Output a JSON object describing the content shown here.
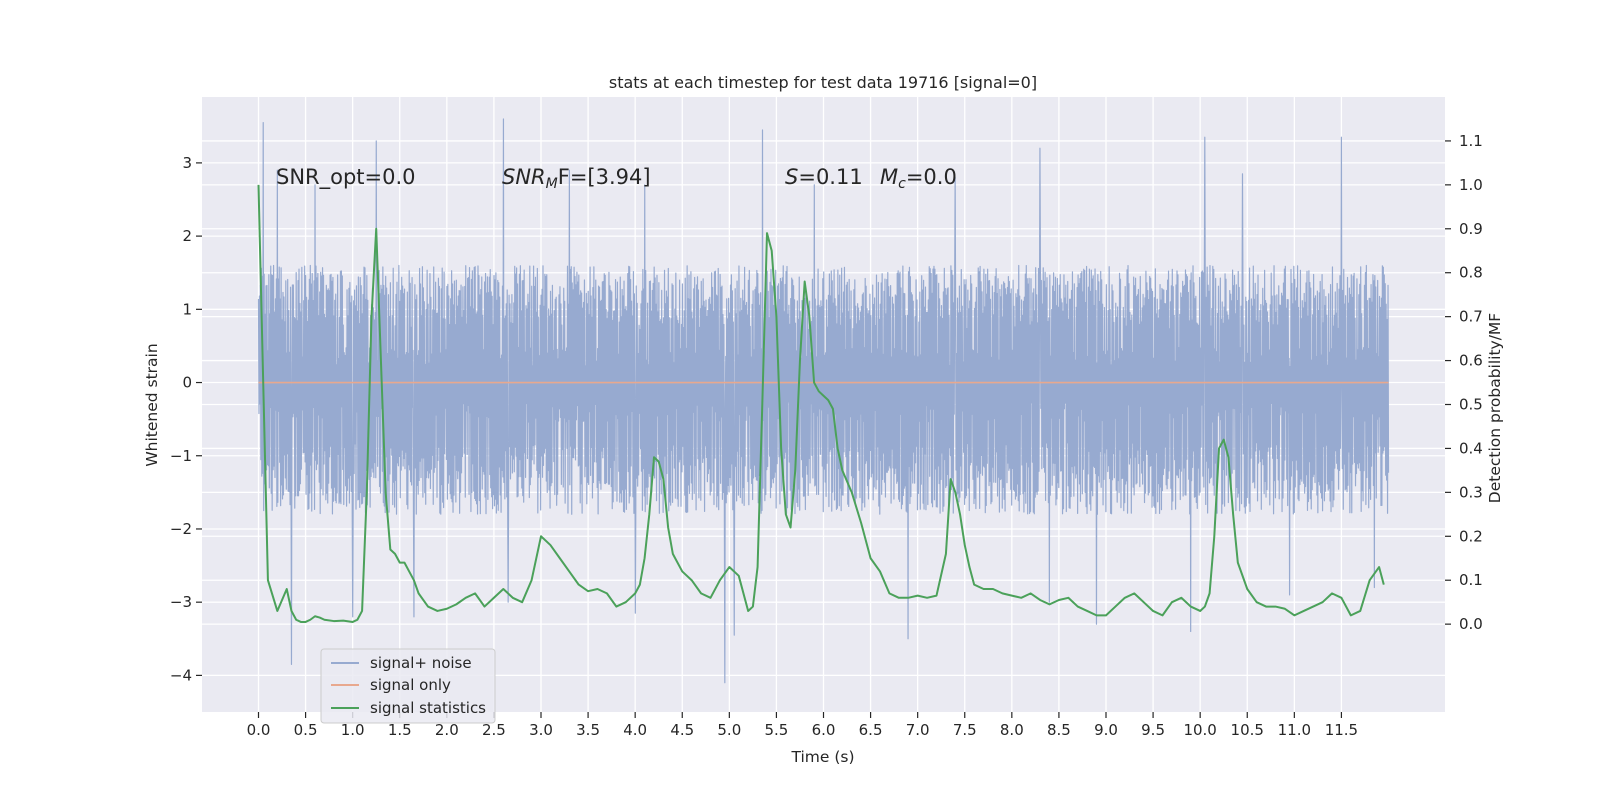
{
  "chart_data": {
    "type": "line",
    "title": "stats at each timestep for test data 19716 [signal=0]",
    "xlabel": "Time (s)",
    "ylabel": "Whitened strain",
    "y2label": "Detection probability/MF",
    "xlim": [
      -0.6,
      12.6
    ],
    "ylim": [
      -4.5,
      3.9
    ],
    "y2lim": [
      -0.2,
      1.2
    ],
    "x_ticks": [
      0.0,
      0.5,
      1.0,
      1.5,
      2.0,
      2.5,
      3.0,
      3.5,
      4.0,
      4.5,
      5.0,
      5.5,
      6.0,
      6.5,
      7.0,
      7.5,
      8.0,
      8.5,
      9.0,
      9.5,
      10.0,
      10.5,
      11.0,
      11.5
    ],
    "x_tick_labels": [
      "0.0",
      "0.5",
      "1.0",
      "1.5",
      "2.0",
      "2.5",
      "3.0",
      "3.5",
      "4.0",
      "4.5",
      "5.0",
      "5.5",
      "6.0",
      "6.5",
      "7.0",
      "7.5",
      "8.0",
      "8.5",
      "9.0",
      "9.5",
      "10.0",
      "10.5",
      "11.0",
      "11.5"
    ],
    "y_ticks": [
      -4,
      -3,
      -2,
      -1,
      0,
      1,
      2,
      3
    ],
    "y_tick_labels": [
      "−4",
      "−3",
      "−2",
      "−1",
      "0",
      "1",
      "2",
      "3"
    ],
    "y2_ticks": [
      0.0,
      0.1,
      0.2,
      0.3,
      0.4,
      0.5,
      0.6,
      0.7,
      0.8,
      0.9,
      1.0,
      1.1
    ],
    "y2_tick_labels": [
      "0.0",
      "0.1",
      "0.2",
      "0.3",
      "0.4",
      "0.5",
      "0.6",
      "0.7",
      "0.8",
      "0.9",
      "1.0",
      "1.1"
    ],
    "grid": true,
    "legend_position": "lower-left",
    "annotations": {
      "snr_opt": "SNR_opt=0.0",
      "snr_mf_main": "SNR",
      "snr_mf_sub": "M",
      "snr_mf_rest": "F=[3.94]",
      "s_main": "S",
      "s_rest": "=0.11",
      "mc_main": "M",
      "mc_sub": "c",
      "mc_rest": "=0.0"
    },
    "series": [
      {
        "name": "signal+ noise",
        "color": "#97aad0",
        "axis": "left",
        "x_range": [
          0.0,
          12.0
        ],
        "envelope_upper_typical": 1.6,
        "envelope_lower_typical": -1.8,
        "upper_spikes": [
          [
            0.05,
            3.55
          ],
          [
            0.2,
            2.9
          ],
          [
            0.6,
            2.7
          ],
          [
            1.25,
            3.3
          ],
          [
            2.6,
            3.6
          ],
          [
            3.3,
            2.9
          ],
          [
            4.1,
            2.7
          ],
          [
            5.35,
            3.45
          ],
          [
            5.9,
            2.7
          ],
          [
            7.4,
            2.8
          ],
          [
            8.3,
            3.2
          ],
          [
            9.9,
            3.2
          ],
          [
            10.05,
            3.35
          ],
          [
            10.45,
            2.85
          ],
          [
            11.5,
            3.35
          ]
        ],
        "lower_spikes": [
          [
            0.35,
            -3.85
          ],
          [
            1.0,
            -3.2
          ],
          [
            1.65,
            -3.2
          ],
          [
            2.65,
            -3.0
          ],
          [
            4.0,
            -3.15
          ],
          [
            4.95,
            -4.1
          ],
          [
            5.05,
            -3.45
          ],
          [
            6.9,
            -3.5
          ],
          [
            8.4,
            -3.0
          ],
          [
            8.9,
            -3.3
          ],
          [
            9.9,
            -3.4
          ],
          [
            10.95,
            -2.9
          ],
          [
            11.85,
            -2.8
          ]
        ]
      },
      {
        "name": "signal only",
        "color": "#e8a88e",
        "axis": "left",
        "x": [
          0.0,
          12.0
        ],
        "y": [
          0.0,
          0.0
        ]
      },
      {
        "name": "signal statistics",
        "color": "#4ba15a",
        "axis": "right",
        "x": [
          0.0,
          0.1,
          0.2,
          0.3,
          0.35,
          0.4,
          0.45,
          0.5,
          0.55,
          0.6,
          0.65,
          0.7,
          0.8,
          0.9,
          1.0,
          1.05,
          1.1,
          1.15,
          1.2,
          1.25,
          1.3,
          1.35,
          1.4,
          1.45,
          1.5,
          1.55,
          1.6,
          1.65,
          1.7,
          1.8,
          1.9,
          2.0,
          2.1,
          2.2,
          2.3,
          2.4,
          2.5,
          2.6,
          2.7,
          2.8,
          2.9,
          3.0,
          3.1,
          3.2,
          3.3,
          3.4,
          3.5,
          3.6,
          3.7,
          3.8,
          3.9,
          4.0,
          4.05,
          4.1,
          4.15,
          4.2,
          4.25,
          4.3,
          4.35,
          4.4,
          4.5,
          4.6,
          4.7,
          4.8,
          4.9,
          5.0,
          5.1,
          5.2,
          5.25,
          5.3,
          5.35,
          5.4,
          5.45,
          5.5,
          5.55,
          5.6,
          5.65,
          5.7,
          5.75,
          5.8,
          5.85,
          5.9,
          5.95,
          6.0,
          6.05,
          6.1,
          6.15,
          6.2,
          6.3,
          6.4,
          6.5,
          6.6,
          6.7,
          6.8,
          6.9,
          7.0,
          7.1,
          7.2,
          7.3,
          7.35,
          7.4,
          7.45,
          7.5,
          7.55,
          7.6,
          7.7,
          7.8,
          7.9,
          8.0,
          8.1,
          8.2,
          8.3,
          8.4,
          8.5,
          8.6,
          8.7,
          8.8,
          8.9,
          9.0,
          9.1,
          9.2,
          9.3,
          9.4,
          9.5,
          9.6,
          9.7,
          9.8,
          9.9,
          10.0,
          10.05,
          10.1,
          10.15,
          10.2,
          10.25,
          10.3,
          10.35,
          10.4,
          10.5,
          10.6,
          10.7,
          10.8,
          10.9,
          11.0,
          11.1,
          11.2,
          11.3,
          11.4,
          11.5,
          11.6,
          11.7,
          11.8,
          11.9,
          11.95
        ],
        "y": [
          1.0,
          0.1,
          0.03,
          0.08,
          0.03,
          0.01,
          0.005,
          0.005,
          0.01,
          0.018,
          0.015,
          0.01,
          0.007,
          0.008,
          0.005,
          0.01,
          0.03,
          0.3,
          0.7,
          0.9,
          0.6,
          0.3,
          0.17,
          0.16,
          0.14,
          0.14,
          0.12,
          0.1,
          0.07,
          0.04,
          0.03,
          0.035,
          0.045,
          0.06,
          0.07,
          0.04,
          0.06,
          0.08,
          0.06,
          0.05,
          0.1,
          0.2,
          0.18,
          0.15,
          0.12,
          0.09,
          0.075,
          0.08,
          0.07,
          0.04,
          0.05,
          0.07,
          0.09,
          0.15,
          0.25,
          0.38,
          0.37,
          0.33,
          0.22,
          0.16,
          0.12,
          0.1,
          0.07,
          0.06,
          0.1,
          0.13,
          0.11,
          0.03,
          0.04,
          0.13,
          0.5,
          0.89,
          0.85,
          0.7,
          0.4,
          0.25,
          0.22,
          0.35,
          0.6,
          0.78,
          0.7,
          0.55,
          0.53,
          0.52,
          0.51,
          0.49,
          0.4,
          0.35,
          0.3,
          0.23,
          0.15,
          0.12,
          0.07,
          0.06,
          0.06,
          0.065,
          0.06,
          0.065,
          0.16,
          0.33,
          0.3,
          0.25,
          0.18,
          0.13,
          0.09,
          0.08,
          0.08,
          0.07,
          0.065,
          0.06,
          0.07,
          0.055,
          0.045,
          0.055,
          0.06,
          0.04,
          0.03,
          0.02,
          0.02,
          0.04,
          0.06,
          0.07,
          0.05,
          0.03,
          0.02,
          0.05,
          0.06,
          0.04,
          0.03,
          0.04,
          0.07,
          0.2,
          0.4,
          0.42,
          0.38,
          0.25,
          0.14,
          0.08,
          0.05,
          0.04,
          0.04,
          0.035,
          0.02,
          0.03,
          0.04,
          0.05,
          0.07,
          0.06,
          0.02,
          0.03,
          0.1,
          0.13,
          0.09
        ]
      }
    ]
  }
}
